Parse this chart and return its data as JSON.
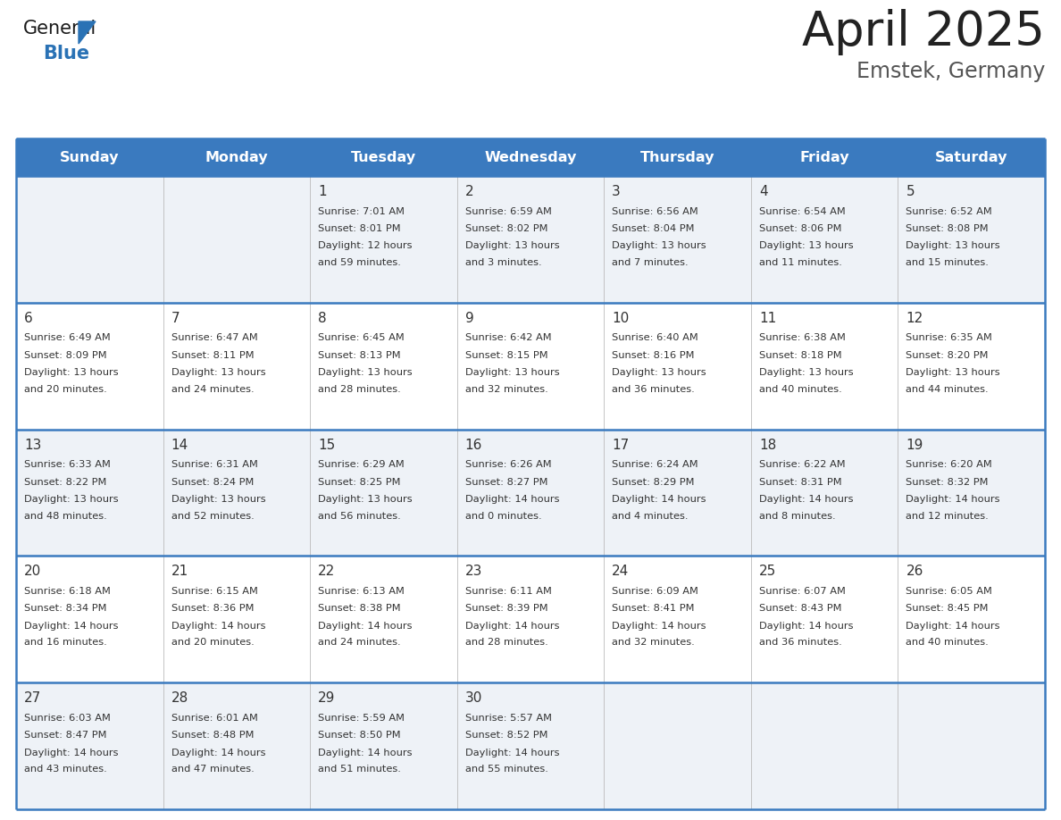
{
  "title": "April 2025",
  "subtitle": "Emstek, Germany",
  "days_of_week": [
    "Sunday",
    "Monday",
    "Tuesday",
    "Wednesday",
    "Thursday",
    "Friday",
    "Saturday"
  ],
  "header_bg": "#3a7abf",
  "header_text": "#ffffff",
  "row_bg_odd": "#eef2f7",
  "row_bg_even": "#ffffff",
  "day_num_color": "#333333",
  "text_color": "#333333",
  "divider_color": "#3a7abf",
  "title_color": "#222222",
  "subtitle_color": "#555555",
  "logo_color1": "#1a1a1a",
  "logo_color2": "#2a72b5",
  "logo_triangle_color": "#2a72b5",
  "calendar": [
    [
      {
        "day": null,
        "sunrise": null,
        "sunset": null,
        "daylight": null
      },
      {
        "day": null,
        "sunrise": null,
        "sunset": null,
        "daylight": null
      },
      {
        "day": 1,
        "sunrise": "7:01 AM",
        "sunset": "8:01 PM",
        "daylight": "12 hours\nand 59 minutes."
      },
      {
        "day": 2,
        "sunrise": "6:59 AM",
        "sunset": "8:02 PM",
        "daylight": "13 hours\nand 3 minutes."
      },
      {
        "day": 3,
        "sunrise": "6:56 AM",
        "sunset": "8:04 PM",
        "daylight": "13 hours\nand 7 minutes."
      },
      {
        "day": 4,
        "sunrise": "6:54 AM",
        "sunset": "8:06 PM",
        "daylight": "13 hours\nand 11 minutes."
      },
      {
        "day": 5,
        "sunrise": "6:52 AM",
        "sunset": "8:08 PM",
        "daylight": "13 hours\nand 15 minutes."
      }
    ],
    [
      {
        "day": 6,
        "sunrise": "6:49 AM",
        "sunset": "8:09 PM",
        "daylight": "13 hours\nand 20 minutes."
      },
      {
        "day": 7,
        "sunrise": "6:47 AM",
        "sunset": "8:11 PM",
        "daylight": "13 hours\nand 24 minutes."
      },
      {
        "day": 8,
        "sunrise": "6:45 AM",
        "sunset": "8:13 PM",
        "daylight": "13 hours\nand 28 minutes."
      },
      {
        "day": 9,
        "sunrise": "6:42 AM",
        "sunset": "8:15 PM",
        "daylight": "13 hours\nand 32 minutes."
      },
      {
        "day": 10,
        "sunrise": "6:40 AM",
        "sunset": "8:16 PM",
        "daylight": "13 hours\nand 36 minutes."
      },
      {
        "day": 11,
        "sunrise": "6:38 AM",
        "sunset": "8:18 PM",
        "daylight": "13 hours\nand 40 minutes."
      },
      {
        "day": 12,
        "sunrise": "6:35 AM",
        "sunset": "8:20 PM",
        "daylight": "13 hours\nand 44 minutes."
      }
    ],
    [
      {
        "day": 13,
        "sunrise": "6:33 AM",
        "sunset": "8:22 PM",
        "daylight": "13 hours\nand 48 minutes."
      },
      {
        "day": 14,
        "sunrise": "6:31 AM",
        "sunset": "8:24 PM",
        "daylight": "13 hours\nand 52 minutes."
      },
      {
        "day": 15,
        "sunrise": "6:29 AM",
        "sunset": "8:25 PM",
        "daylight": "13 hours\nand 56 minutes."
      },
      {
        "day": 16,
        "sunrise": "6:26 AM",
        "sunset": "8:27 PM",
        "daylight": "14 hours\nand 0 minutes."
      },
      {
        "day": 17,
        "sunrise": "6:24 AM",
        "sunset": "8:29 PM",
        "daylight": "14 hours\nand 4 minutes."
      },
      {
        "day": 18,
        "sunrise": "6:22 AM",
        "sunset": "8:31 PM",
        "daylight": "14 hours\nand 8 minutes."
      },
      {
        "day": 19,
        "sunrise": "6:20 AM",
        "sunset": "8:32 PM",
        "daylight": "14 hours\nand 12 minutes."
      }
    ],
    [
      {
        "day": 20,
        "sunrise": "6:18 AM",
        "sunset": "8:34 PM",
        "daylight": "14 hours\nand 16 minutes."
      },
      {
        "day": 21,
        "sunrise": "6:15 AM",
        "sunset": "8:36 PM",
        "daylight": "14 hours\nand 20 minutes."
      },
      {
        "day": 22,
        "sunrise": "6:13 AM",
        "sunset": "8:38 PM",
        "daylight": "14 hours\nand 24 minutes."
      },
      {
        "day": 23,
        "sunrise": "6:11 AM",
        "sunset": "8:39 PM",
        "daylight": "14 hours\nand 28 minutes."
      },
      {
        "day": 24,
        "sunrise": "6:09 AM",
        "sunset": "8:41 PM",
        "daylight": "14 hours\nand 32 minutes."
      },
      {
        "day": 25,
        "sunrise": "6:07 AM",
        "sunset": "8:43 PM",
        "daylight": "14 hours\nand 36 minutes."
      },
      {
        "day": 26,
        "sunrise": "6:05 AM",
        "sunset": "8:45 PM",
        "daylight": "14 hours\nand 40 minutes."
      }
    ],
    [
      {
        "day": 27,
        "sunrise": "6:03 AM",
        "sunset": "8:47 PM",
        "daylight": "14 hours\nand 43 minutes."
      },
      {
        "day": 28,
        "sunrise": "6:01 AM",
        "sunset": "8:48 PM",
        "daylight": "14 hours\nand 47 minutes."
      },
      {
        "day": 29,
        "sunrise": "5:59 AM",
        "sunset": "8:50 PM",
        "daylight": "14 hours\nand 51 minutes."
      },
      {
        "day": 30,
        "sunrise": "5:57 AM",
        "sunset": "8:52 PM",
        "daylight": "14 hours\nand 55 minutes."
      },
      {
        "day": null,
        "sunrise": null,
        "sunset": null,
        "daylight": null
      },
      {
        "day": null,
        "sunrise": null,
        "sunset": null,
        "daylight": null
      },
      {
        "day": null,
        "sunrise": null,
        "sunset": null,
        "daylight": null
      }
    ]
  ]
}
